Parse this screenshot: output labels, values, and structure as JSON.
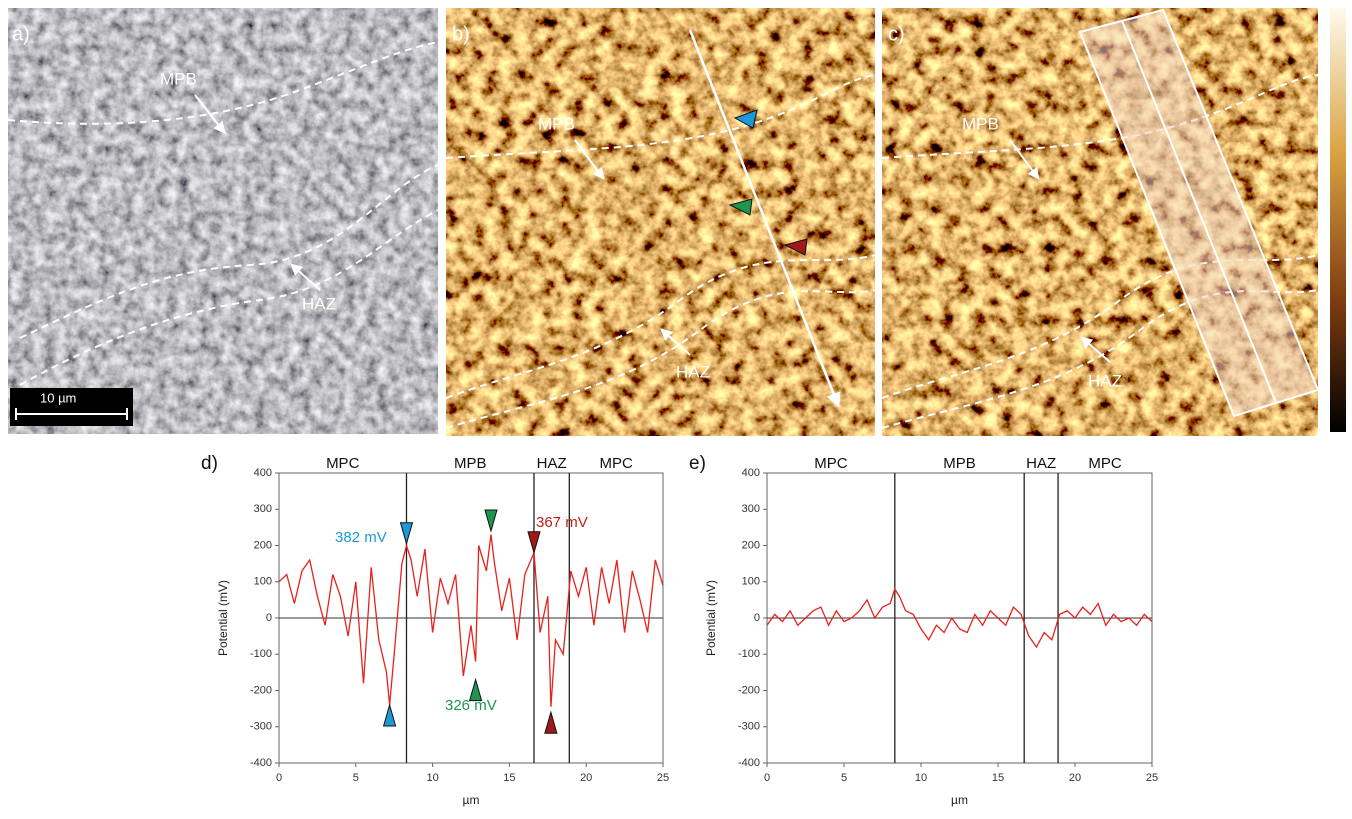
{
  "images": [
    {
      "label": "a)",
      "annotations": [
        "MPB",
        "HAZ"
      ],
      "scale_bar": "10 µm"
    },
    {
      "label": "b)",
      "annotations": [
        "MPB",
        "HAZ"
      ]
    },
    {
      "label": "c)",
      "annotations": [
        "MPB",
        "HAZ"
      ]
    }
  ],
  "chart_data": [
    {
      "type": "line",
      "panel_label": "d)",
      "ylabel": "Potential (mV)",
      "xlabel": "µm",
      "xlim": [
        0,
        25
      ],
      "xticks": [
        0,
        5,
        10,
        15,
        20,
        25
      ],
      "ylim": [
        -400,
        400
      ],
      "yticks": [
        -400,
        -300,
        -200,
        -100,
        0,
        100,
        200,
        300,
        400
      ],
      "regions": [
        "MPC",
        "MPB",
        "HAZ",
        "MPC"
      ],
      "boundaries": [
        8.3,
        16.6,
        18.9
      ],
      "annotations": [
        {
          "text": "382 mV",
          "color": "#1a9ad8"
        },
        {
          "text": "367 mV",
          "color": "#c0201a"
        },
        {
          "text": "326 mV",
          "color": "#1e9650"
        }
      ],
      "markers": [
        {
          "x": 8.3,
          "y": 205,
          "direction": "down",
          "color": "#1a9ad8"
        },
        {
          "x": 7.2,
          "y": -240,
          "direction": "up",
          "color": "#1a9ad8"
        },
        {
          "x": 13.8,
          "y": 240,
          "direction": "down",
          "color": "#1e9650"
        },
        {
          "x": 12.8,
          "y": -170,
          "direction": "up",
          "color": "#1e9650"
        },
        {
          "x": 16.6,
          "y": 180,
          "direction": "down",
          "color": "#a01818"
        },
        {
          "x": 17.7,
          "y": -260,
          "direction": "up",
          "color": "#a01818"
        }
      ],
      "x": [
        0,
        0.5,
        1,
        1.5,
        2,
        2.5,
        3,
        3.5,
        4,
        4.5,
        5,
        5.5,
        6,
        6.5,
        7,
        7.2,
        7.5,
        8,
        8.3,
        8.6,
        9,
        9.5,
        10,
        10.5,
        11,
        11.5,
        12,
        12.5,
        12.8,
        13,
        13.5,
        13.8,
        14,
        14.5,
        15,
        15.5,
        16,
        16.6,
        17,
        17.5,
        17.7,
        18,
        18.5,
        19,
        19.5,
        20,
        20.5,
        21,
        21.5,
        22,
        22.5,
        23,
        23.5,
        24,
        24.5,
        25
      ],
      "series": [
        {
          "name": "Potential",
          "color": "#e8211d",
          "values": [
            100,
            120,
            40,
            130,
            160,
            60,
            -20,
            120,
            60,
            -50,
            100,
            -180,
            140,
            -60,
            -150,
            -240,
            -100,
            150,
            200,
            160,
            60,
            190,
            -40,
            110,
            40,
            120,
            -160,
            -20,
            -120,
            200,
            130,
            230,
            160,
            20,
            110,
            -60,
            120,
            180,
            -40,
            60,
            -245,
            -60,
            -100,
            130,
            60,
            140,
            -20,
            140,
            40,
            160,
            -40,
            130,
            50,
            -40,
            160,
            90
          ]
        }
      ]
    },
    {
      "type": "line",
      "panel_label": "e)",
      "ylabel": "Potential (mV)",
      "xlabel": "µm",
      "xlim": [
        0,
        25
      ],
      "xticks": [
        0,
        5,
        10,
        15,
        20,
        25
      ],
      "ylim": [
        -400,
        400
      ],
      "yticks": [
        -400,
        -300,
        -200,
        -100,
        0,
        100,
        200,
        300,
        400
      ],
      "regions": [
        "MPC",
        "MPB",
        "HAZ",
        "MPC"
      ],
      "boundaries": [
        8.3,
        16.7,
        18.9
      ],
      "x": [
        0,
        0.5,
        1,
        1.5,
        2,
        2.5,
        3,
        3.5,
        4,
        4.5,
        5,
        5.5,
        6,
        6.5,
        7,
        7.5,
        8,
        8.3,
        8.6,
        9,
        9.5,
        10,
        10.5,
        11,
        11.5,
        12,
        12.5,
        13,
        13.5,
        14,
        14.5,
        15,
        15.5,
        16,
        16.5,
        17,
        17.5,
        18,
        18.5,
        19,
        19.5,
        20,
        20.5,
        21,
        21.5,
        22,
        22.5,
        23,
        23.5,
        24,
        24.5,
        25
      ],
      "series": [
        {
          "name": "Potential",
          "color": "#e8211d",
          "values": [
            -20,
            10,
            -10,
            20,
            -20,
            0,
            20,
            30,
            -20,
            20,
            -10,
            0,
            20,
            50,
            0,
            30,
            40,
            80,
            60,
            20,
            10,
            -30,
            -60,
            -20,
            -40,
            0,
            -30,
            -40,
            10,
            -20,
            20,
            0,
            -20,
            30,
            10,
            -50,
            -80,
            -40,
            -60,
            10,
            20,
            0,
            30,
            10,
            40,
            -20,
            10,
            -10,
            0,
            -20,
            10,
            -10
          ]
        }
      ]
    }
  ]
}
